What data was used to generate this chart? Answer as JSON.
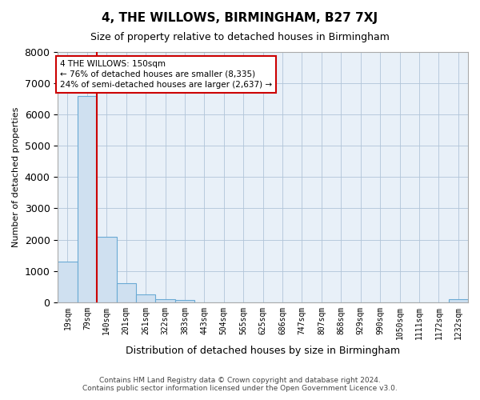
{
  "title": "4, THE WILLOWS, BIRMINGHAM, B27 7XJ",
  "subtitle": "Size of property relative to detached houses in Birmingham",
  "xlabel": "Distribution of detached houses by size in Birmingham",
  "ylabel": "Number of detached properties",
  "bar_color": "#cfe0f0",
  "bar_edge_color": "#6aaad4",
  "plot_bg_color": "#e8f0f8",
  "fig_bg_color": "#ffffff",
  "grid_color": "#b0c4d8",
  "categories": [
    "19sqm",
    "79sqm",
    "140sqm",
    "201sqm",
    "261sqm",
    "322sqm",
    "383sqm",
    "443sqm",
    "504sqm",
    "565sqm",
    "625sqm",
    "686sqm",
    "747sqm",
    "807sqm",
    "868sqm",
    "929sqm",
    "990sqm",
    "1050sqm",
    "1111sqm",
    "1172sqm",
    "1232sqm"
  ],
  "values": [
    1300,
    6600,
    2100,
    600,
    250,
    100,
    70,
    0,
    0,
    0,
    0,
    0,
    0,
    0,
    0,
    0,
    0,
    0,
    0,
    0,
    100
  ],
  "ylim": [
    0,
    8000
  ],
  "red_line_x": 1.5,
  "annotation_text": "4 THE WILLOWS: 150sqm\n← 76% of detached houses are smaller (8,335)\n24% of semi-detached houses are larger (2,637) →",
  "annotation_box_color": "#ffffff",
  "annotation_box_edge_color": "#cc0000",
  "annotation_text_color": "#000000",
  "red_line_color": "#cc0000",
  "footer_line1": "Contains HM Land Registry data © Crown copyright and database right 2024.",
  "footer_line2": "Contains public sector information licensed under the Open Government Licence v3.0."
}
